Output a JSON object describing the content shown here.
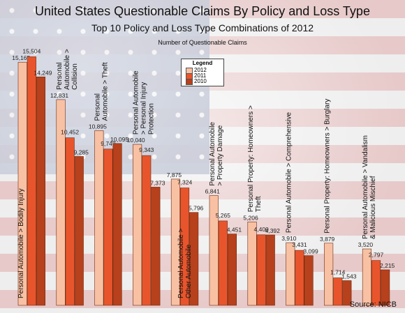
{
  "title": "United States Questionable Claims By Policy and Loss Type",
  "subtitle": "Top 10 Policy and Loss Type Combinations of 2012",
  "ylabel": "Number of Questionable Claims",
  "source": "Source: NICB",
  "legend": {
    "title": "Legend",
    "items": [
      {
        "label": "2012",
        "color": "#f9c1a3"
      },
      {
        "label": "2011",
        "color": "#e8552c"
      },
      {
        "label": "2010",
        "color": "#b6411c"
      }
    ]
  },
  "chart_data": {
    "type": "bar",
    "title": "United States Questionable Claims By Policy and Loss Type",
    "subtitle": "Top 10 Policy and Loss Type Combinations of 2012",
    "ylabel": "Number of Questionable Claims",
    "ylim": [
      0,
      16500
    ],
    "categories": [
      "Personal Automobile > Bodily Injury",
      "Personal Automobile > Collision",
      "Personal Automobile > Theft",
      "Personal Automobile > Personal Injury Protection",
      "Personal Automobile > Other Automobile",
      "Personal Automobile > Property Damage",
      "Personal Property: Homeowners > Theft",
      "Personal Automobile > Comprehensive",
      "Personal Property: Homeowners > Burglary",
      "Personal Automobile > Vandalism & Malicious Mischief"
    ],
    "category_lines": [
      [
        "Personal Automobile > Bodily Injury"
      ],
      [
        "Personal",
        "Automobile >",
        "Collision"
      ],
      [
        "Personal",
        "Automobile > Theft"
      ],
      [
        "Personal Automobile",
        "> Personal Injury",
        "Protection"
      ],
      [
        "Personal Automobile >",
        "Other Automobile"
      ],
      [
        "Personal Automobile",
        "> Property Damage"
      ],
      [
        "Personal Property: Homeowners >",
        "Theft"
      ],
      [
        "Personal Automobile > Comprehensive"
      ],
      [
        "Personal Property: Homeowners > Burglary"
      ],
      [
        "Personal Automobile > Vandalism",
        "& Malicious Mischief"
      ]
    ],
    "series": [
      {
        "name": "2012",
        "color": "#f9c1a3",
        "values": [
          15165,
          12831,
          10895,
          10040,
          7875,
          6841,
          5206,
          3910,
          3879,
          3520
        ]
      },
      {
        "name": "2011",
        "color": "#e8552c",
        "values": [
          15504,
          10452,
          9749,
          9343,
          7324,
          5265,
          4400,
          3431,
          1714,
          2797
        ]
      },
      {
        "name": "2010",
        "color": "#b6411c",
        "values": [
          14249,
          9285,
          10095,
          7373,
          5796,
          4451,
          4392,
          3099,
          1543,
          2215
        ]
      }
    ],
    "value_labels": [
      [
        "15,165",
        "12,831",
        "10,895",
        "10,040",
        "7,875",
        "6,841",
        "5,206",
        "3,910",
        "3,879",
        "3,520"
      ],
      [
        "15,504",
        "10,452",
        "9,749",
        "9,343",
        "7,324",
        "5,265",
        "4,400",
        "3,431",
        "1,714",
        "2,797"
      ],
      [
        "14,249",
        "9,285",
        "10,095",
        "7,373",
        "5,796",
        "4,451",
        "4,392",
        "3,099",
        "1,543",
        "2,215"
      ]
    ],
    "category_label_style": [
      "inside-bar",
      "above",
      "above",
      "above",
      "inside-bar",
      "above",
      "above",
      "above",
      "above",
      "above"
    ],
    "grid": false,
    "legend_position": "top-center"
  }
}
